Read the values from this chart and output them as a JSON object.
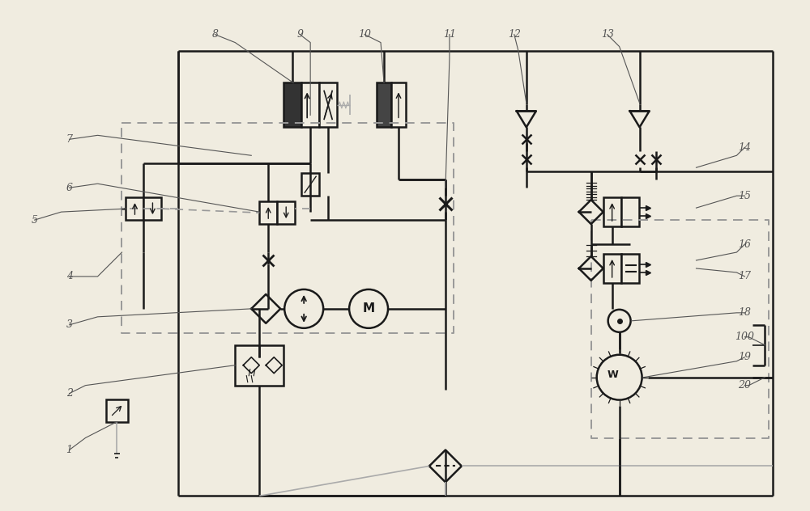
{
  "bg_color": "#f0ece0",
  "line_color": "#1a1a1a",
  "dashed_color": "#999999",
  "label_color": "#555555",
  "lw_main": 1.8,
  "lw_thin": 1.2,
  "figsize": [
    10.0,
    6.32
  ],
  "dpi": 100
}
